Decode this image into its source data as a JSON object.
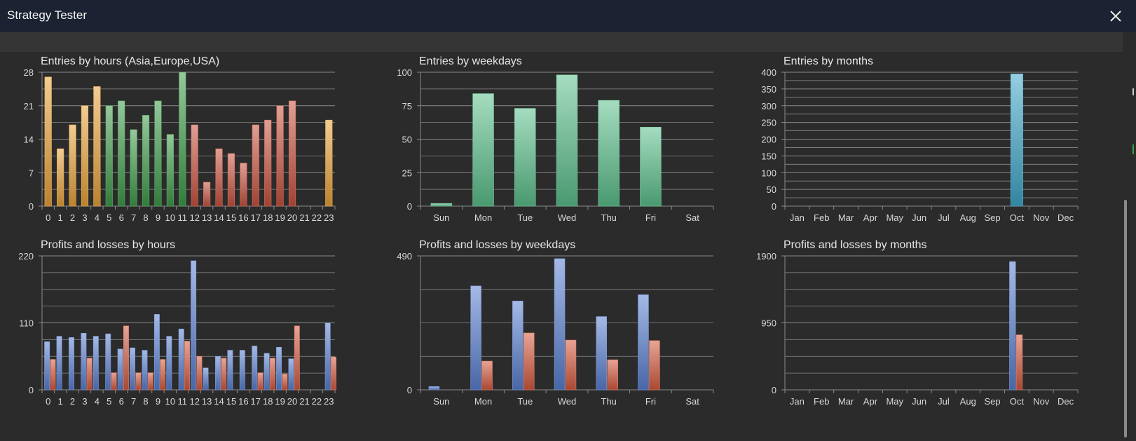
{
  "window": {
    "title": "Strategy Tester",
    "close_icon": "close-icon"
  },
  "colors": {
    "background": "#2b2b2b",
    "grid": "#8a8a8a",
    "text": "#d8d8d8",
    "asia": "#e8a23a",
    "europe": "#3f9b4a",
    "usa": "#c8533e",
    "weekday_bar": "#5bbf8c",
    "month_bar": "#3fa6c8",
    "profit": "#5a7fd0",
    "loss": "#d45a3e"
  },
  "chart_data": [
    {
      "id": "hours-entries",
      "type": "bar",
      "title": "Entries by hours (Asia,Europe,USA)",
      "categories": [
        "0",
        "1",
        "2",
        "3",
        "4",
        "5",
        "6",
        "7",
        "8",
        "9",
        "10",
        "11",
        "12",
        "13",
        "14",
        "15",
        "16",
        "17",
        "18",
        "19",
        "20",
        "21",
        "22",
        "23"
      ],
      "values": [
        27,
        12,
        17,
        21,
        25,
        21,
        22,
        16,
        19,
        22,
        15,
        28,
        17,
        5,
        12,
        11,
        9,
        17,
        18,
        21,
        22,
        0,
        0,
        18
      ],
      "bar_colors": [
        "asia",
        "asia",
        "asia",
        "asia",
        "asia",
        "europe",
        "europe",
        "europe",
        "europe",
        "europe",
        "europe",
        "europe",
        "usa",
        "usa",
        "usa",
        "usa",
        "usa",
        "usa",
        "usa",
        "usa",
        "usa",
        "usa",
        "usa",
        "asia"
      ],
      "yticks": [
        0,
        7,
        14,
        21,
        28
      ],
      "ylim": [
        0,
        28
      ],
      "grid": true
    },
    {
      "id": "weekday-entries",
      "type": "bar",
      "title": "Entries by weekdays",
      "categories": [
        "Sun",
        "Mon",
        "Tue",
        "Wed",
        "Thu",
        "Fri",
        "Sat"
      ],
      "values": [
        2,
        84,
        73,
        98,
        79,
        59,
        0
      ],
      "yticks": [
        0,
        25,
        50,
        75,
        100
      ],
      "ylim": [
        0,
        100
      ],
      "grid": true
    },
    {
      "id": "month-entries",
      "type": "bar",
      "title": "Entries by months",
      "categories": [
        "Jan",
        "Feb",
        "Mar",
        "Apr",
        "May",
        "Jun",
        "Jul",
        "Aug",
        "Sep",
        "Oct",
        "Nov",
        "Dec"
      ],
      "values": [
        0,
        0,
        0,
        0,
        0,
        0,
        0,
        0,
        0,
        395,
        0,
        0
      ],
      "yticks": [
        0,
        50,
        100,
        150,
        200,
        250,
        300,
        350,
        400
      ],
      "ylim": [
        0,
        400
      ],
      "grid": true
    },
    {
      "id": "hours-pl",
      "type": "bar",
      "title": "Profits and losses by hours",
      "categories": [
        "0",
        "1",
        "2",
        "3",
        "4",
        "5",
        "6",
        "7",
        "8",
        "9",
        "10",
        "11",
        "12",
        "13",
        "14",
        "15",
        "16",
        "17",
        "18",
        "19",
        "20",
        "21",
        "22",
        "23"
      ],
      "series": [
        {
          "values": [
            79,
            88,
            86,
            93,
            88,
            92,
            67,
            69,
            65,
            124,
            88,
            100,
            212,
            36,
            55,
            65,
            65,
            72,
            60,
            70,
            51,
            0,
            0,
            110
          ]
        },
        {
          "values": [
            50,
            0,
            0,
            52,
            0,
            28,
            105,
            28,
            28,
            50,
            0,
            80,
            55,
            0,
            52,
            0,
            0,
            28,
            52,
            26,
            105,
            0,
            0,
            54
          ]
        }
      ],
      "yticks": [
        0,
        110,
        220
      ],
      "ylim": [
        0,
        220
      ],
      "grid": true
    },
    {
      "id": "weekday-pl",
      "type": "bar",
      "title": "Profits and losses by weekdays",
      "categories": [
        "Sun",
        "Mon",
        "Tue",
        "Wed",
        "Thu",
        "Fri",
        "Sat"
      ],
      "series": [
        {
          "values": [
            12,
            380,
            325,
            480,
            268,
            348,
            0
          ]
        },
        {
          "values": [
            0,
            105,
            208,
            182,
            110,
            180,
            0
          ]
        }
      ],
      "yticks": [
        0,
        490
      ],
      "ylim": [
        0,
        490
      ],
      "grid": true
    },
    {
      "id": "month-pl",
      "type": "bar",
      "title": "Profits and losses by months",
      "categories": [
        "Jan",
        "Feb",
        "Mar",
        "Apr",
        "May",
        "Jun",
        "Jul",
        "Aug",
        "Sep",
        "Oct",
        "Nov",
        "Dec"
      ],
      "series": [
        {
          "values": [
            0,
            0,
            0,
            0,
            0,
            0,
            0,
            0,
            0,
            1820,
            0,
            0
          ]
        },
        {
          "values": [
            0,
            0,
            0,
            0,
            0,
            0,
            0,
            0,
            0,
            780,
            0,
            0
          ]
        }
      ],
      "yticks": [
        0,
        950,
        1900
      ],
      "ylim": [
        0,
        1900
      ],
      "grid": true
    }
  ]
}
